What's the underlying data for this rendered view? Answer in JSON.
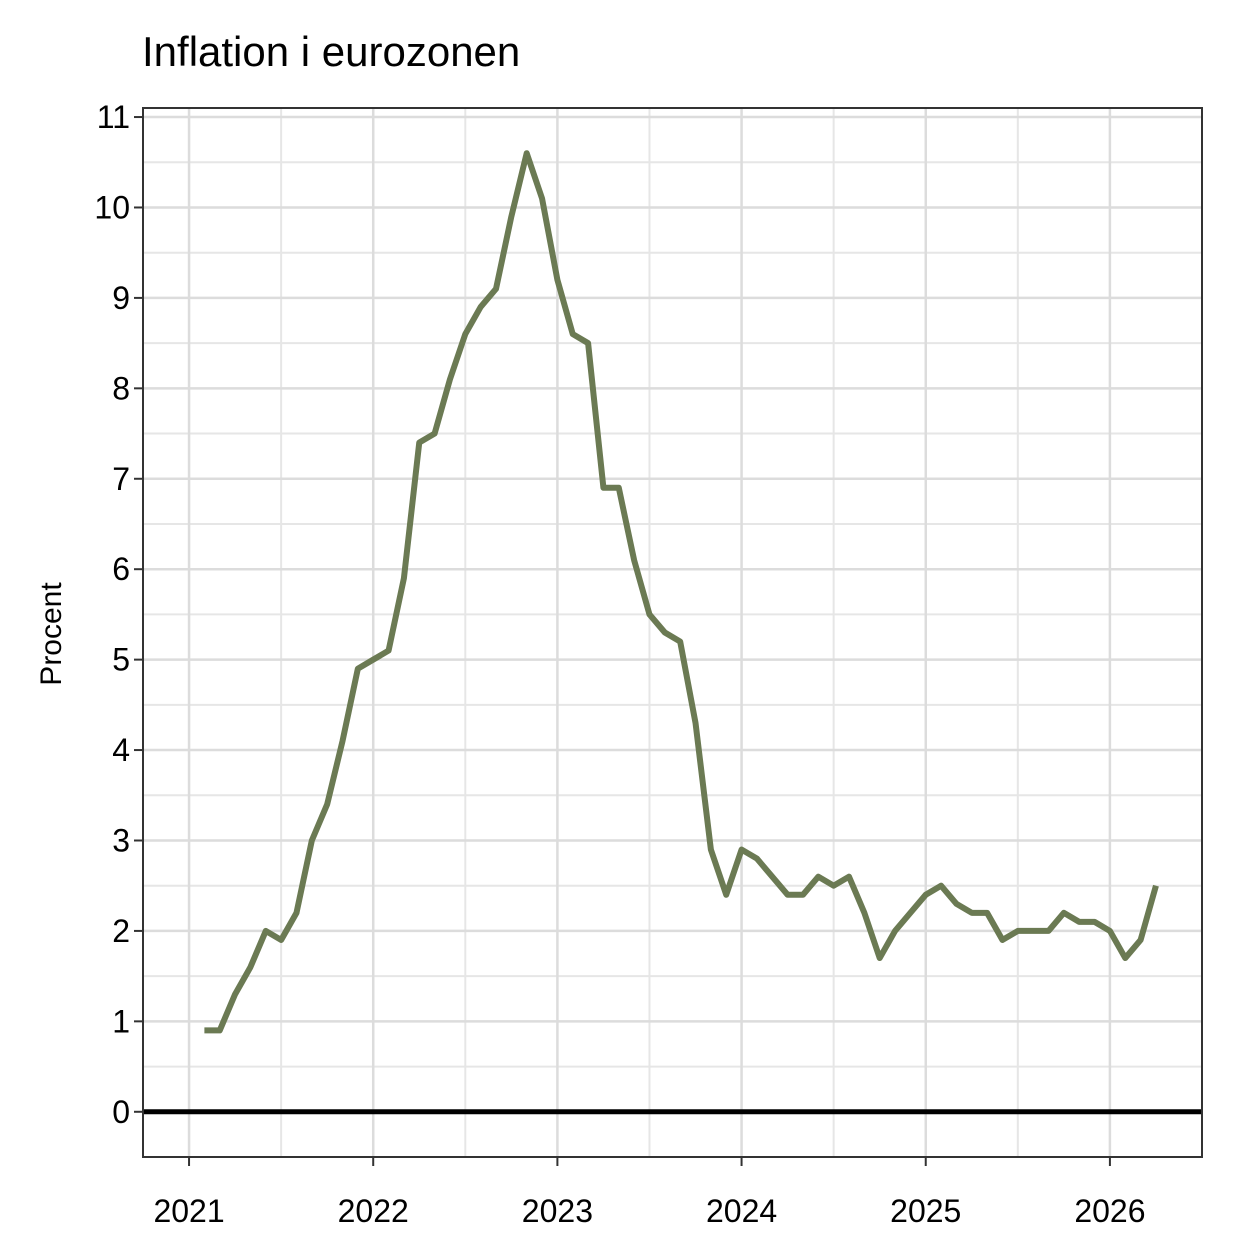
{
  "chart_data": {
    "type": "line",
    "title": "Inflation i eurozonen",
    "xlabel": "",
    "ylabel": "Procent",
    "xlim": [
      "2020-10",
      "2026-07"
    ],
    "ylim": [
      -0.5,
      11.1
    ],
    "x_ticks": [
      "2021",
      "2022",
      "2023",
      "2024",
      "2025",
      "2026"
    ],
    "y_ticks": [
      "0",
      "1",
      "2",
      "3",
      "4",
      "5",
      "6",
      "7",
      "8",
      "9",
      "10",
      "11"
    ],
    "minor_y_step": 0.5,
    "grid": true,
    "zero_line": true,
    "line_color": "#6b7a53",
    "series": [
      {
        "x": [
          "2021-02",
          "2021-03",
          "2021-04",
          "2021-05",
          "2021-06",
          "2021-07",
          "2021-08",
          "2021-09",
          "2021-10",
          "2021-11",
          "2021-12",
          "2022-01",
          "2022-02",
          "2022-03",
          "2022-04",
          "2022-05",
          "2022-06",
          "2022-07",
          "2022-08",
          "2022-09",
          "2022-10",
          "2022-11",
          "2022-12",
          "2023-01",
          "2023-02",
          "2023-03",
          "2023-04",
          "2023-05",
          "2023-06",
          "2023-07",
          "2023-08",
          "2023-09",
          "2023-10",
          "2023-11",
          "2023-12",
          "2024-01",
          "2024-02",
          "2024-03",
          "2024-04",
          "2024-05",
          "2024-06",
          "2024-07",
          "2024-08",
          "2024-09",
          "2024-10",
          "2024-11",
          "2024-12",
          "2025-01",
          "2025-02",
          "2025-03",
          "2025-04",
          "2025-05",
          "2025-06",
          "2025-07",
          "2025-08",
          "2025-09",
          "2025-10",
          "2025-11",
          "2025-12",
          "2026-01",
          "2026-02",
          "2026-03",
          "2026-04"
        ],
        "values": [
          0.9,
          0.9,
          1.3,
          1.6,
          2.0,
          1.9,
          2.2,
          3.0,
          3.4,
          4.1,
          4.9,
          5.0,
          5.1,
          5.9,
          7.4,
          7.5,
          8.1,
          8.6,
          8.9,
          9.1,
          9.9,
          10.6,
          10.1,
          9.2,
          8.6,
          8.5,
          6.9,
          6.9,
          6.1,
          5.5,
          5.3,
          5.2,
          4.3,
          2.9,
          2.4,
          2.9,
          2.8,
          2.6,
          2.4,
          2.4,
          2.6,
          2.5,
          2.6,
          2.2,
          1.7,
          2.0,
          2.2,
          2.4,
          2.5,
          2.3,
          2.2,
          2.2,
          1.9,
          2.0,
          2.0,
          2.0,
          2.2,
          2.1,
          2.1,
          2.0,
          1.7,
          1.9,
          2.5
        ]
      }
    ]
  }
}
